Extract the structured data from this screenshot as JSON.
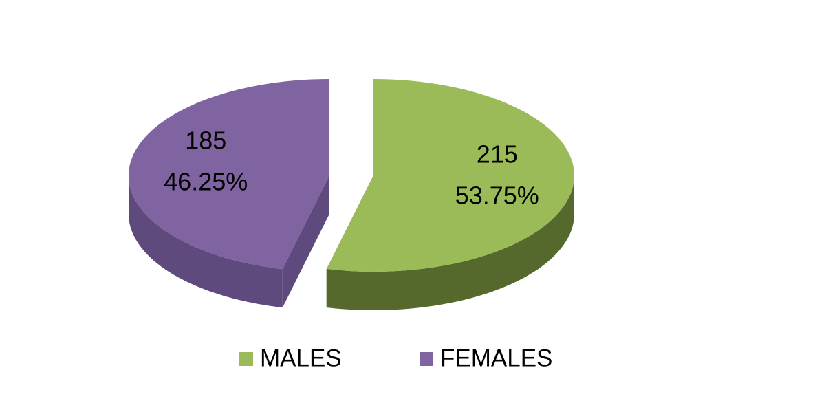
{
  "chart_data": {
    "type": "pie",
    "categories": [
      "MALES",
      "FEMALES"
    ],
    "values": [
      215,
      185
    ],
    "percent_labels": [
      "53.75%",
      "46.25%"
    ],
    "colors": [
      "#9bbb59",
      "#8064a2"
    ],
    "side_colors": [
      "#55692c",
      "#5e4a7c"
    ],
    "legend": "bottom"
  }
}
